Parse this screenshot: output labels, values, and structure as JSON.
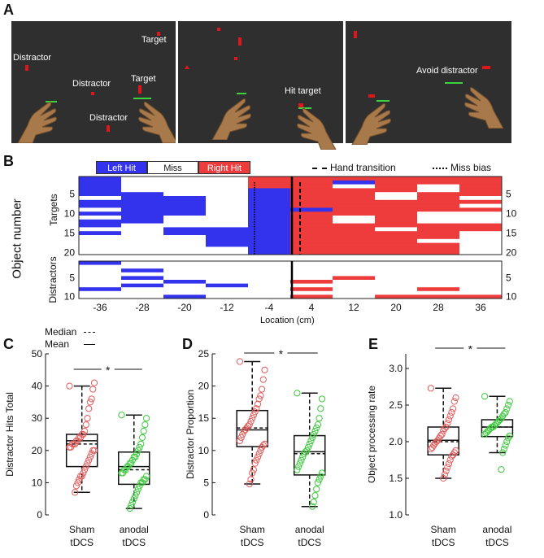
{
  "panels": {
    "a": "A",
    "b": "B",
    "c": "C",
    "d": "D",
    "e": "E"
  },
  "panel_a": {
    "screen1": {
      "distractor_1": "Distractor",
      "target_1": "Target",
      "distractor_2": "Distractor",
      "target_2": "Target",
      "distractor_3": "Distractor"
    },
    "screen2": {
      "hit_target": "Hit target"
    },
    "screen3": {
      "avoid_distractor": "Avoid distractor"
    }
  },
  "panel_b": {
    "legend": {
      "left_hit": "Left Hit",
      "miss": "Miss",
      "right_hit": "Right Hit",
      "hand_transition": "Hand transition",
      "miss_bias": "Miss bias"
    },
    "colors": {
      "left": "#3333ee",
      "right": "#ee3b3b",
      "miss": "#ffffff"
    },
    "ylabel": "Object number",
    "targets_label": "Targets",
    "distractors_label": "Distractors",
    "xlabel": "Location (cm)",
    "xticks": [
      "-36",
      "-28",
      "-20",
      "-12",
      "-4",
      "4",
      "12",
      "20",
      "28",
      "36"
    ],
    "target_yticks": [
      "5",
      "10",
      "15",
      "20"
    ],
    "distractor_yticks": [
      "5",
      "10"
    ]
  },
  "chart_data": [
    {
      "type": "box",
      "panel": "C",
      "title": "",
      "ylabel": "Distractor Hits Total",
      "ylim": [
        0,
        50
      ],
      "yticks": [
        "0",
        "10",
        "20",
        "30",
        "40",
        "50"
      ],
      "categories": [
        "Sham tDCS",
        "anodal tDCS"
      ],
      "cat_line1": [
        "Sham",
        "anodal"
      ],
      "cat_line2": [
        "tDCS",
        "tDCS"
      ],
      "boxes": [
        {
          "name": "Sham tDCS",
          "color": "#e05a5a",
          "whisker_low": 7,
          "q1": 15,
          "median": 22,
          "mean": 23,
          "q3": 25,
          "whisker_high": 40,
          "points": [
            40,
            41,
            39,
            36,
            35,
            33,
            30,
            28,
            26,
            25,
            25,
            24,
            24,
            23,
            23,
            22,
            22,
            22,
            21,
            21,
            20,
            20,
            19,
            18,
            17,
            16,
            15,
            14,
            13,
            12,
            12,
            11,
            10,
            9,
            7
          ]
        },
        {
          "name": "anodal tDCS",
          "color": "#3cc83c",
          "whisker_low": 2,
          "q1": 9.5,
          "median": 14,
          "mean": 15,
          "q3": 19.5,
          "whisker_high": 31,
          "points": [
            31,
            30,
            28,
            26,
            24,
            22,
            21,
            20,
            19,
            18,
            18,
            17,
            16,
            16,
            15,
            15,
            14,
            14,
            13,
            13,
            12,
            11,
            11,
            10,
            10,
            9,
            8,
            7,
            6,
            5,
            4,
            3,
            2
          ]
        }
      ],
      "significance": "*",
      "legend": {
        "median": "Median",
        "mean": "Mean"
      }
    },
    {
      "type": "box",
      "panel": "D",
      "ylabel": "Distractor Proportion",
      "ylim": [
        0,
        25
      ],
      "yticks": [
        "0",
        "5",
        "10",
        "15",
        "20",
        "25"
      ],
      "categories": [
        "Sham tDCS",
        "anodal tDCS"
      ],
      "cat_line1": [
        "Sham",
        "anodal"
      ],
      "cat_line2": [
        "tDCS",
        "tDCS"
      ],
      "boxes": [
        {
          "name": "Sham tDCS",
          "color": "#e05a5a",
          "whisker_low": 4.8,
          "q1": 10.6,
          "median": 13.5,
          "mean": 13.2,
          "q3": 16.2,
          "whisker_high": 23.8,
          "points": [
            23.8,
            22.5,
            21,
            19.5,
            18.5,
            18,
            17.2,
            16.5,
            16,
            15.5,
            15,
            14.5,
            14,
            13.8,
            13.5,
            13.2,
            13,
            12.5,
            12,
            11.5,
            11,
            10.8,
            10.5,
            10,
            9.5,
            9,
            8.5,
            8,
            7,
            6.5,
            5.5,
            4.8
          ]
        },
        {
          "name": "anodal tDCS",
          "color": "#3cc83c",
          "whisker_low": 1.3,
          "q1": 6.2,
          "median": 9.5,
          "mean": 9.8,
          "q3": 12.3,
          "whisker_high": 18.9,
          "points": [
            18.9,
            18,
            16.5,
            15,
            14,
            13.5,
            13,
            12.5,
            12,
            11.5,
            11,
            10.5,
            10,
            9.8,
            9.5,
            9,
            8.5,
            8,
            7.5,
            7,
            6.5,
            6,
            5.5,
            5,
            4,
            3,
            2,
            1.3
          ]
        }
      ],
      "significance": "*"
    },
    {
      "type": "box",
      "panel": "E",
      "ylabel": "Object processing rate",
      "ylim": [
        1,
        3.2
      ],
      "yticks": [
        "1.0",
        "1.5",
        "2.0",
        "2.5",
        "3.0"
      ],
      "categories": [
        "Sham tDCS",
        "anodal tDCS"
      ],
      "cat_line1": [
        "Sham",
        "anodal"
      ],
      "cat_line2": [
        "tDCS",
        "tDCS"
      ],
      "boxes": [
        {
          "name": "Sham tDCS",
          "color": "#e05a5a",
          "whisker_low": 1.5,
          "q1": 1.82,
          "median": 2.0,
          "mean": 2.02,
          "q3": 2.2,
          "whisker_high": 2.73,
          "points": [
            2.73,
            2.6,
            2.55,
            2.45,
            2.4,
            2.35,
            2.3,
            2.25,
            2.2,
            2.18,
            2.15,
            2.1,
            2.08,
            2.05,
            2.02,
            2.0,
            1.98,
            1.95,
            1.92,
            1.9,
            1.88,
            1.85,
            1.82,
            1.8,
            1.75,
            1.7,
            1.65,
            1.6,
            1.55,
            1.5
          ]
        },
        {
          "name": "anodal tDCS",
          "color": "#3cc83c",
          "whisker_low": 1.85,
          "q1": 2.07,
          "median": 2.2,
          "mean": 2.2,
          "q3": 2.3,
          "whisker_high": 2.62,
          "points": [
            2.62,
            2.55,
            2.5,
            2.45,
            2.4,
            2.38,
            2.35,
            2.32,
            2.3,
            2.28,
            2.26,
            2.24,
            2.22,
            2.2,
            2.2,
            2.18,
            2.16,
            2.14,
            2.12,
            2.1,
            2.08,
            2.05,
            2.0,
            1.95,
            1.9,
            1.85,
            1.62
          ]
        }
      ],
      "significance": "*"
    }
  ]
}
